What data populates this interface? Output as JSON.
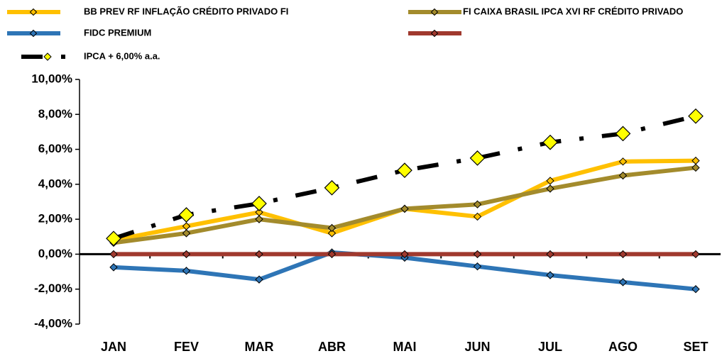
{
  "chart_data": {
    "type": "line",
    "categories": [
      "JAN",
      "FEV",
      "MAR",
      "ABR",
      "MAI",
      "JUN",
      "JUL",
      "AGO",
      "SET"
    ],
    "series": [
      {
        "name": "BB PREV RF INFLAÇÃO CRÉDITO PRIVADO FI",
        "color": "#FFC000",
        "values": [
          0.8,
          1.6,
          2.4,
          1.2,
          2.6,
          2.15,
          4.2,
          5.3,
          5.35
        ]
      },
      {
        "name": "FI CAIXA BRASIL IPCA XVI RF CRÉDITO PRIVADO",
        "color": "#A38B2C",
        "values": [
          0.65,
          1.2,
          2.0,
          1.5,
          2.6,
          2.85,
          3.75,
          4.5,
          4.95
        ]
      },
      {
        "name": "FIDC PREMIUM",
        "color": "#2E75B6",
        "values": [
          -0.75,
          -0.95,
          -1.45,
          0.1,
          -0.2,
          -0.7,
          -1.2,
          -1.6,
          -2.0
        ]
      },
      {
        "color": "#A0392E",
        "values": [
          0,
          0,
          0,
          0,
          0,
          0,
          0,
          0,
          0
        ]
      },
      {
        "name": "IPCA + 6,00% a.a.",
        "color": "#000000",
        "dashed": true,
        "values": [
          0.9,
          2.25,
          2.9,
          3.8,
          4.8,
          5.5,
          6.4,
          6.9,
          7.9
        ]
      }
    ],
    "ylim": [
      -4,
      10
    ],
    "yticks": [
      {
        "value": -4,
        "label": "-4,00%"
      },
      {
        "value": -2,
        "label": "-2,00%"
      },
      {
        "value": 0,
        "label": "0,00%"
      },
      {
        "value": 2,
        "label": "2,00%"
      },
      {
        "value": 4,
        "label": "4,00%"
      },
      {
        "value": 6,
        "label": "6,00%"
      },
      {
        "value": 8,
        "label": "8,00%"
      },
      {
        "value": 10,
        "label": "10,00%"
      }
    ]
  }
}
